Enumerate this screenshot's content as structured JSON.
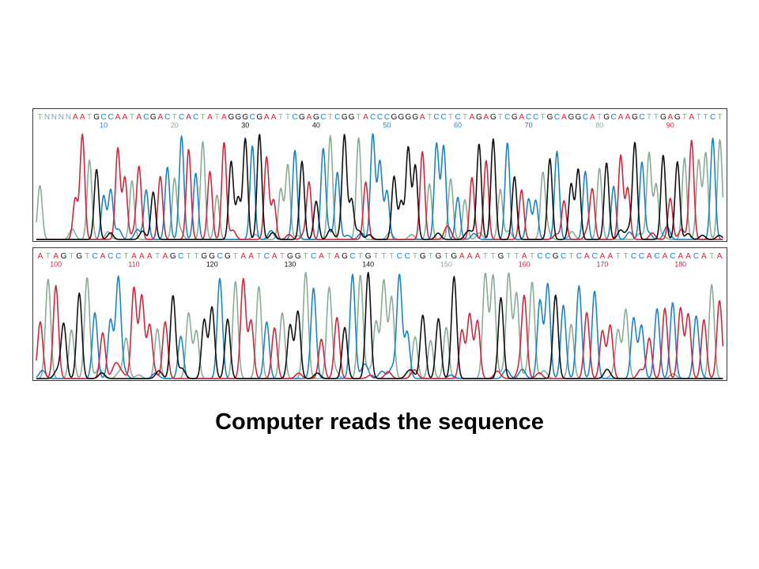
{
  "colors": {
    "A": "#d3263c",
    "C": "#1d84c4",
    "G": "#111111",
    "T": "#8bac95"
  },
  "traces": [
    {
      "sequence": "TNNNNAATGCCAATACGACTCACTATAGGGCGAATTCGAGCTCGGTACCCGGGGATCCTCTAGAGTCGACCTGCAGGCATGCAAGCTTGAGTATTCT",
      "positions": [
        "10",
        "20",
        "30",
        "40",
        "50",
        "60",
        "70",
        "80",
        "90"
      ]
    },
    {
      "sequence": "ATAGTGTCACCTAAATAGCTTGGCGTAATCATGGTCATAGCTGTTTCCTGTGTGAAATTGTTATCCGCTCACAATTCCACACAACATA",
      "positions": [
        "100",
        "110",
        "120",
        "130",
        "140",
        "150",
        "160",
        "170",
        "180"
      ]
    }
  ],
  "caption": "Computer reads the sequence"
}
